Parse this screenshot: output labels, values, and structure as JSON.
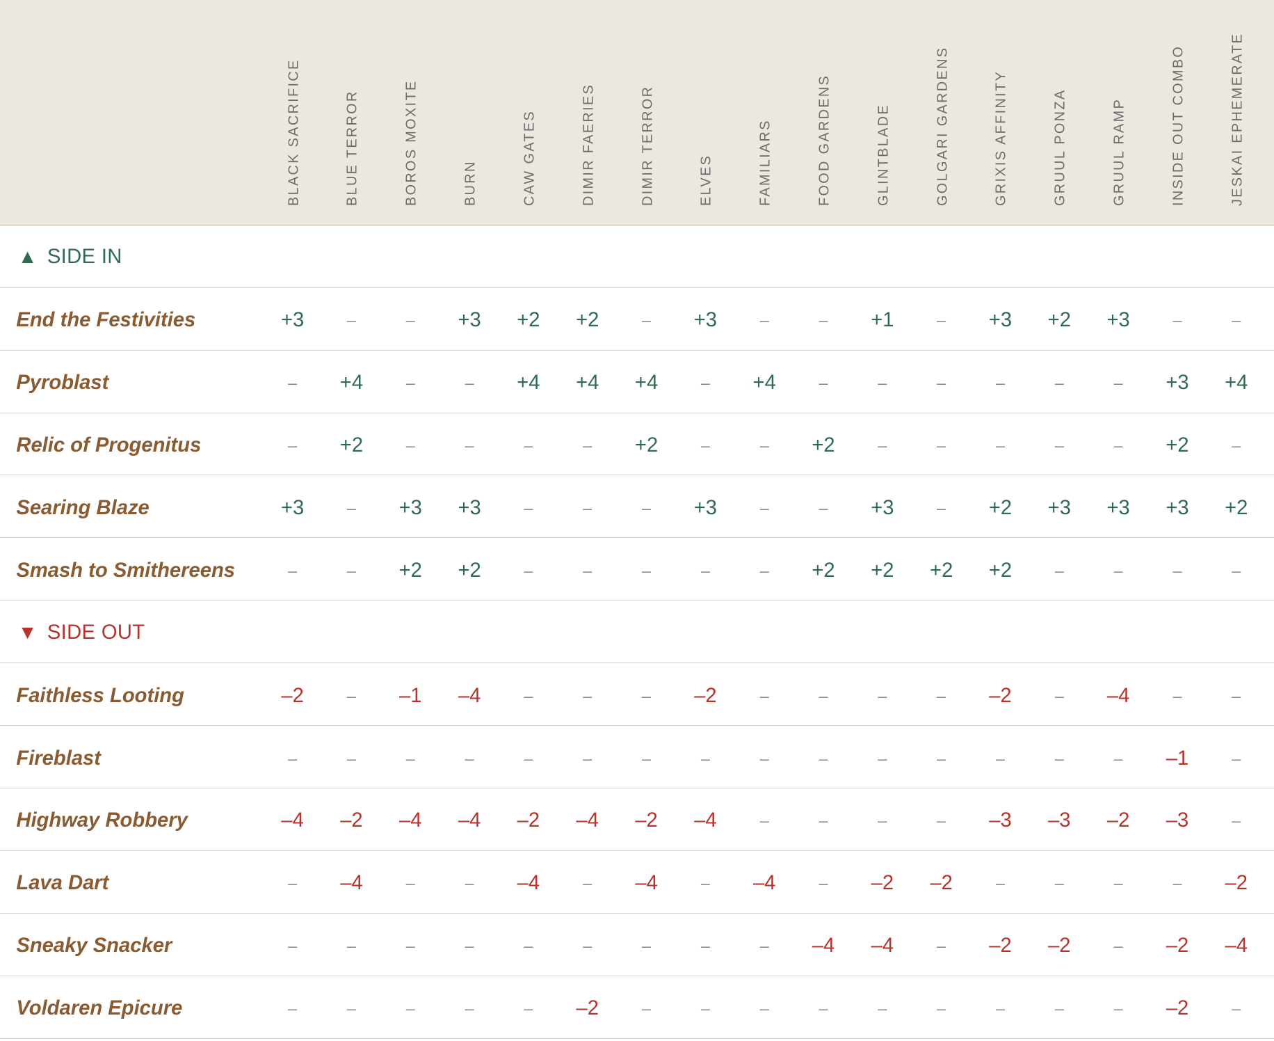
{
  "columns": [
    "BLACK SACRIFICE",
    "BLUE TERROR",
    "BOROS MOXITE",
    "BURN",
    "CAW GATES",
    "DIMIR FAERIES",
    "DIMIR TERROR",
    "ELVES",
    "FAMILIARS",
    "FOOD GARDENS",
    "GLINTBLADE",
    "GOLGARI GARDENS",
    "GRIXIS AFFINITY",
    "GRUUL PONZA",
    "GRUUL RAMP",
    "INSIDE OUT COMBO",
    "JESKAI EPHEMERATE"
  ],
  "sections": [
    {
      "symbol": "▲",
      "title": "SIDE IN",
      "kind": "in",
      "rows": [
        {
          "card": "End the Festivities",
          "values": [
            "+3",
            "–",
            "–",
            "+3",
            "+2",
            "+2",
            "–",
            "+3",
            "–",
            "–",
            "+1",
            "–",
            "+3",
            "+2",
            "+3",
            "–",
            "–"
          ]
        },
        {
          "card": "Pyroblast",
          "values": [
            "–",
            "+4",
            "–",
            "–",
            "+4",
            "+4",
            "+4",
            "–",
            "+4",
            "–",
            "–",
            "–",
            "–",
            "–",
            "–",
            "+3",
            "+4"
          ]
        },
        {
          "card": "Relic of Progenitus",
          "values": [
            "–",
            "+2",
            "–",
            "–",
            "–",
            "–",
            "+2",
            "–",
            "–",
            "+2",
            "–",
            "–",
            "–",
            "–",
            "–",
            "+2",
            "–"
          ]
        },
        {
          "card": "Searing Blaze",
          "values": [
            "+3",
            "–",
            "+3",
            "+3",
            "–",
            "–",
            "–",
            "+3",
            "–",
            "–",
            "+3",
            "–",
            "+2",
            "+3",
            "+3",
            "+3",
            "+2"
          ]
        },
        {
          "card": "Smash to Smithereens",
          "values": [
            "–",
            "–",
            "+2",
            "+2",
            "–",
            "–",
            "–",
            "–",
            "–",
            "+2",
            "+2",
            "+2",
            "+2",
            "–",
            "–",
            "–",
            "–"
          ]
        }
      ]
    },
    {
      "symbol": "▼",
      "title": "SIDE OUT",
      "kind": "out",
      "rows": [
        {
          "card": "Faithless Looting",
          "values": [
            "–2",
            "–",
            "–1",
            "–4",
            "–",
            "–",
            "–",
            "–2",
            "–",
            "–",
            "–",
            "–",
            "–2",
            "–",
            "–4",
            "–",
            "–"
          ]
        },
        {
          "card": "Fireblast",
          "values": [
            "–",
            "–",
            "–",
            "–",
            "–",
            "–",
            "–",
            "–",
            "–",
            "–",
            "–",
            "–",
            "–",
            "–",
            "–",
            "–1",
            "–"
          ]
        },
        {
          "card": "Highway Robbery",
          "values": [
            "–4",
            "–2",
            "–4",
            "–4",
            "–2",
            "–4",
            "–2",
            "–4",
            "–",
            "–",
            "–",
            "–",
            "–3",
            "–3",
            "–2",
            "–3",
            "–"
          ]
        },
        {
          "card": "Lava Dart",
          "values": [
            "–",
            "–4",
            "–",
            "–",
            "–4",
            "–",
            "–4",
            "–",
            "–4",
            "–",
            "–2",
            "–2",
            "–",
            "–",
            "–",
            "–",
            "–2"
          ]
        },
        {
          "card": "Sneaky Snacker",
          "values": [
            "–",
            "–",
            "–",
            "–",
            "–",
            "–",
            "–",
            "–",
            "–",
            "–4",
            "–4",
            "–",
            "–2",
            "–2",
            "–",
            "–2",
            "–4"
          ]
        },
        {
          "card": "Voldaren Epicure",
          "values": [
            "–",
            "–",
            "–",
            "–",
            "–",
            "–2",
            "–",
            "–",
            "–",
            "–",
            "–",
            "–",
            "–",
            "–",
            "–",
            "–2",
            "–"
          ]
        }
      ]
    }
  ],
  "colors": {
    "header_bg": "#ece8df",
    "side_in": "#2f6b4f",
    "side_out": "#b8322c",
    "card_name": "#8a5a30",
    "dash": "#8a8a8a",
    "divider": "#d9d4ca"
  }
}
